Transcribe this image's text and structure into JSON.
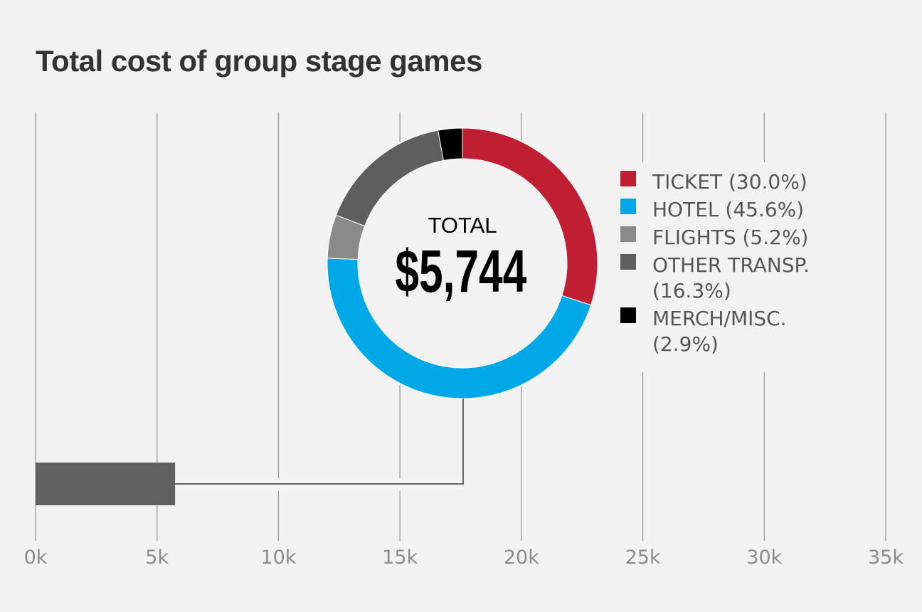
{
  "chart_data": [
    {
      "type": "bar",
      "title": "Total cost of group stage games",
      "orientation": "horizontal",
      "values": [
        5744
      ],
      "xlim": [
        0,
        35000
      ],
      "xticks": [
        0,
        5000,
        10000,
        15000,
        20000,
        25000,
        30000,
        35000
      ],
      "xtick_labels": [
        "0k",
        "5k",
        "10k",
        "15k",
        "20k",
        "25k",
        "30k",
        "35k"
      ],
      "grid": true,
      "bar_color": "#606060"
    },
    {
      "type": "pie",
      "donut": true,
      "center_label": "TOTAL",
      "center_value": "$5,744",
      "legend_placement": "right",
      "slices": [
        {
          "label": "TICKET (30.0%)",
          "value": 30.0,
          "color": "#c01f33"
        },
        {
          "label": "HOTEL (45.6%)",
          "value": 45.6,
          "color": "#00a8e8"
        },
        {
          "label": "FLIGHTS (5.2%)",
          "value": 5.2,
          "color": "#8a8a8a"
        },
        {
          "label": "OTHER TRANSP. (16.3%)",
          "label_lines": [
            "OTHER TRANSP.",
            "(16.3%)"
          ],
          "value": 16.3,
          "color": "#5e5e5e"
        },
        {
          "label": "MERCH/MISC. (2.9%)",
          "label_lines": [
            "MERCH/MISC.",
            "(2.9%)"
          ],
          "value": 2.9,
          "color": "#000000"
        }
      ]
    }
  ]
}
